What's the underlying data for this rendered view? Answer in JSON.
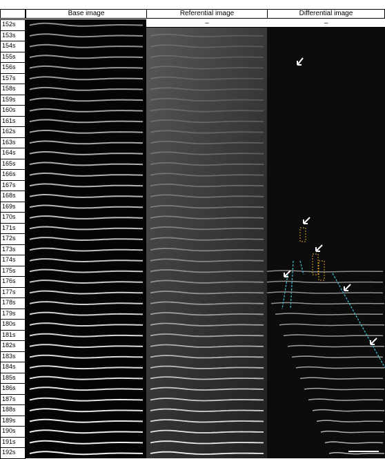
{
  "header": {
    "columns": [
      "Base image",
      "Referential image",
      "Differential image"
    ]
  },
  "placeholders": [
    "–",
    "–"
  ],
  "rows": [
    "152s",
    "153s",
    "154s",
    "155s",
    "156s",
    "157s",
    "158s",
    "159s",
    "160s",
    "161s",
    "162s",
    "163s",
    "164s",
    "165s",
    "166s",
    "167s",
    "168s",
    "169s",
    "170s",
    "171s",
    "172s",
    "173s",
    "174s",
    "175s",
    "176s",
    "177s",
    "178s",
    "179s",
    "180s",
    "181s",
    "182s",
    "183s",
    "184s",
    "185s",
    "186s",
    "187s",
    "188s",
    "189s",
    "190s",
    "191s",
    "192s"
  ]
}
